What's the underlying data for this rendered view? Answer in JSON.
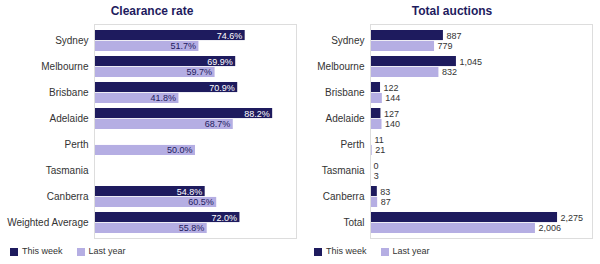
{
  "chart_data": [
    {
      "type": "bar",
      "title": "Clearance rate",
      "orientation": "horizontal",
      "data_labels": true,
      "tick_labels": "y",
      "legend": "bottom-left",
      "categories": [
        "Sydney",
        "Melbourne",
        "Brisbane",
        "Adelaide",
        "Perth",
        "Tasmania",
        "Canberra",
        "Weighted Average"
      ],
      "xlim": [
        0,
        100
      ],
      "series": [
        {
          "name": "This week",
          "color": "#1e1b5e",
          "values": [
            74.6,
            69.9,
            70.9,
            88.2,
            null,
            null,
            54.8,
            72.0
          ],
          "value_labels": [
            "74.6%",
            "69.9%",
            "70.9%",
            "88.2%",
            null,
            null,
            "54.8%",
            "72.0%"
          ]
        },
        {
          "name": "Last year",
          "color": "#b5aee3",
          "values": [
            51.7,
            59.7,
            41.8,
            68.7,
            50.0,
            null,
            60.5,
            55.8
          ],
          "value_labels": [
            "51.7%",
            "59.7%",
            "41.8%",
            "68.7%",
            "50.0%",
            null,
            "60.5%",
            "55.8%"
          ]
        }
      ]
    },
    {
      "type": "bar",
      "title": "Total auctions",
      "orientation": "horizontal",
      "data_labels": true,
      "tick_labels": "y",
      "legend": "bottom-left",
      "categories": [
        "Sydney",
        "Melbourne",
        "Brisbane",
        "Adelaide",
        "Perth",
        "Tasmania",
        "Canberra",
        "Total"
      ],
      "xlim": [
        0,
        2700
      ],
      "series": [
        {
          "name": "This week",
          "color": "#1e1b5e",
          "values": [
            887,
            1045,
            122,
            127,
            11,
            0,
            83,
            2275
          ],
          "value_labels": [
            "887",
            "1,045",
            "122",
            "127",
            "11",
            "0",
            "83",
            "2,275"
          ]
        },
        {
          "name": "Last year",
          "color": "#b5aee3",
          "values": [
            779,
            832,
            144,
            140,
            21,
            3,
            87,
            2006
          ],
          "value_labels": [
            "779",
            "832",
            "144",
            "140",
            "21",
            "3",
            "87",
            "2,006"
          ]
        }
      ]
    }
  ]
}
